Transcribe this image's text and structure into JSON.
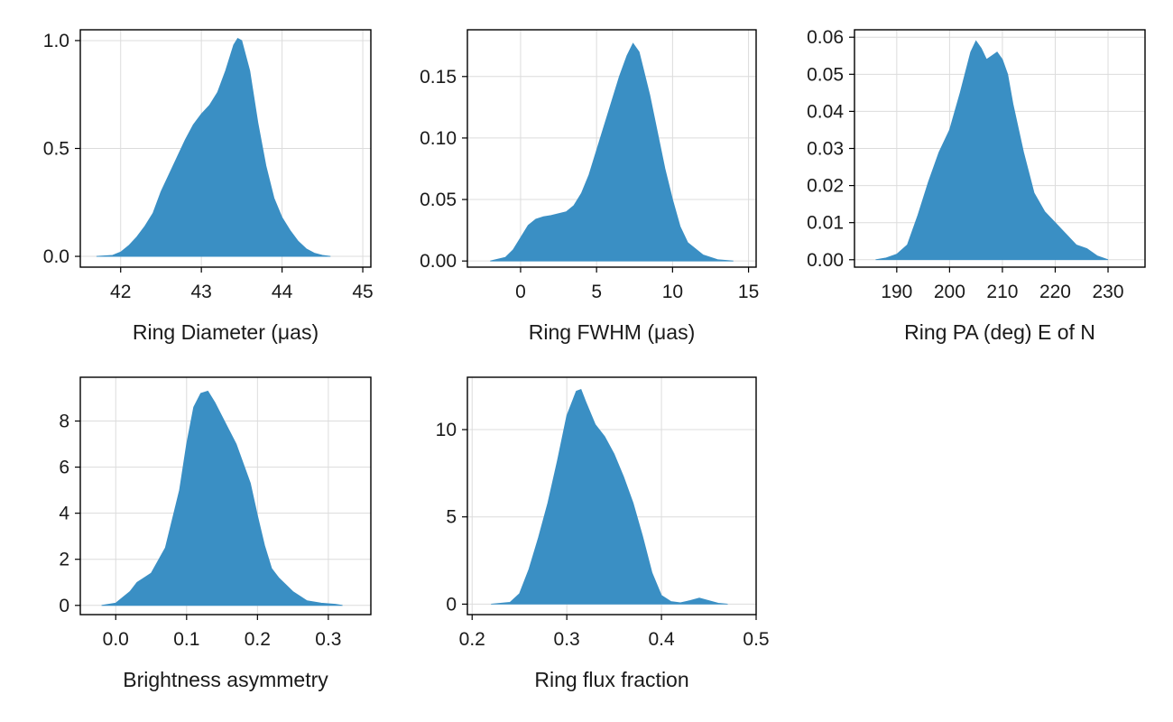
{
  "chart_data": [
    {
      "type": "area",
      "xlabel": "Ring Diameter (μas)",
      "ylabel": "",
      "xlim": [
        41.5,
        45.1
      ],
      "ylim": [
        -0.05,
        1.05
      ],
      "xticks": [
        "42",
        "43",
        "44",
        "45"
      ],
      "yticks": [
        "0.0",
        "0.5",
        "1.0"
      ],
      "grid": true,
      "color": "#3a8fc4",
      "series": [
        {
          "x": [
            41.7,
            41.9,
            42.0,
            42.1,
            42.2,
            42.3,
            42.4,
            42.5,
            42.6,
            42.7,
            42.8,
            42.9,
            43.0,
            43.1,
            43.2,
            43.3,
            43.4,
            43.45,
            43.5,
            43.6,
            43.7,
            43.8,
            43.9,
            44.0,
            44.1,
            44.2,
            44.3,
            44.4,
            44.5,
            44.6
          ],
          "y": [
            0.0,
            0.005,
            0.02,
            0.05,
            0.09,
            0.14,
            0.2,
            0.3,
            0.38,
            0.46,
            0.54,
            0.61,
            0.66,
            0.7,
            0.76,
            0.86,
            0.98,
            1.01,
            1.0,
            0.86,
            0.62,
            0.42,
            0.27,
            0.18,
            0.12,
            0.07,
            0.035,
            0.015,
            0.005,
            0.0
          ]
        }
      ]
    },
    {
      "type": "area",
      "xlabel": "Ring FWHM (μas)",
      "ylabel": "",
      "xlim": [
        -3.5,
        15.5
      ],
      "ylim": [
        -0.005,
        0.188
      ],
      "xticks": [
        "0",
        "5",
        "10",
        "15"
      ],
      "yticks": [
        "0.00",
        "0.05",
        "0.10",
        "0.15"
      ],
      "grid": true,
      "color": "#3a8fc4",
      "series": [
        {
          "x": [
            -2.0,
            -1.0,
            -0.5,
            0.0,
            0.5,
            1.0,
            1.5,
            2.0,
            3.0,
            3.5,
            4.0,
            4.5,
            5.0,
            5.5,
            6.0,
            6.5,
            7.0,
            7.4,
            7.8,
            8.5,
            9.0,
            9.5,
            10.0,
            10.5,
            11.0,
            12.0,
            13.0,
            14.0
          ],
          "y": [
            0.0,
            0.003,
            0.009,
            0.019,
            0.029,
            0.034,
            0.036,
            0.037,
            0.04,
            0.045,
            0.055,
            0.07,
            0.09,
            0.11,
            0.13,
            0.15,
            0.167,
            0.177,
            0.17,
            0.135,
            0.105,
            0.075,
            0.05,
            0.028,
            0.015,
            0.005,
            0.001,
            0.0
          ]
        }
      ]
    },
    {
      "type": "area",
      "xlabel": "Ring PA (deg) E of N",
      "ylabel": "",
      "xlim": [
        182,
        237
      ],
      "ylim": [
        -0.002,
        0.062
      ],
      "xticks": [
        "190",
        "200",
        "210",
        "220",
        "230"
      ],
      "yticks": [
        "0.00",
        "0.01",
        "0.02",
        "0.03",
        "0.04",
        "0.05",
        "0.06"
      ],
      "grid": true,
      "color": "#3a8fc4",
      "series": [
        {
          "x": [
            186,
            188,
            190,
            192,
            194,
            196,
            198,
            200,
            202,
            204,
            205,
            206,
            207,
            208,
            209,
            210,
            211,
            212,
            214,
            216,
            218,
            220,
            222,
            224,
            226,
            228,
            230
          ],
          "y": [
            0.0,
            0.0005,
            0.0015,
            0.004,
            0.012,
            0.021,
            0.029,
            0.035,
            0.045,
            0.056,
            0.059,
            0.057,
            0.054,
            0.055,
            0.056,
            0.054,
            0.05,
            0.042,
            0.029,
            0.018,
            0.013,
            0.01,
            0.007,
            0.004,
            0.003,
            0.001,
            0.0
          ]
        }
      ]
    },
    {
      "type": "area",
      "xlabel": "Brightness asymmetry",
      "ylabel": "",
      "xlim": [
        -0.05,
        0.36
      ],
      "ylim": [
        -0.4,
        9.9
      ],
      "xticks": [
        "0.0",
        "0.1",
        "0.2",
        "0.3"
      ],
      "yticks": [
        "0",
        "2",
        "4",
        "6",
        "8"
      ],
      "grid": true,
      "color": "#3a8fc4",
      "series": [
        {
          "x": [
            -0.02,
            0.0,
            0.02,
            0.03,
            0.04,
            0.05,
            0.07,
            0.09,
            0.1,
            0.11,
            0.12,
            0.13,
            0.14,
            0.15,
            0.17,
            0.19,
            0.2,
            0.21,
            0.22,
            0.23,
            0.25,
            0.27,
            0.29,
            0.31,
            0.32
          ],
          "y": [
            0.0,
            0.1,
            0.6,
            1.0,
            1.2,
            1.4,
            2.5,
            5.0,
            7.0,
            8.6,
            9.2,
            9.3,
            8.8,
            8.2,
            7.0,
            5.3,
            3.9,
            2.6,
            1.6,
            1.2,
            0.6,
            0.2,
            0.1,
            0.05,
            0.0
          ]
        }
      ]
    },
    {
      "type": "area",
      "xlabel": "Ring flux fraction",
      "ylabel": "",
      "xlim": [
        0.195,
        0.5
      ],
      "ylim": [
        -0.6,
        13.0
      ],
      "xticks": [
        "0.2",
        "0.3",
        "0.4",
        "0.5"
      ],
      "yticks": [
        "0",
        "5",
        "10"
      ],
      "grid": true,
      "color": "#3a8fc4",
      "series": [
        {
          "x": [
            0.22,
            0.24,
            0.25,
            0.26,
            0.27,
            0.28,
            0.29,
            0.3,
            0.31,
            0.315,
            0.32,
            0.33,
            0.34,
            0.35,
            0.36,
            0.37,
            0.38,
            0.39,
            0.4,
            0.41,
            0.42,
            0.43,
            0.44,
            0.45,
            0.46,
            0.47
          ],
          "y": [
            0.0,
            0.1,
            0.6,
            2.0,
            3.8,
            5.8,
            8.2,
            10.8,
            12.2,
            12.3,
            11.6,
            10.3,
            9.6,
            8.6,
            7.3,
            5.8,
            3.9,
            1.8,
            0.5,
            0.15,
            0.08,
            0.2,
            0.35,
            0.2,
            0.05,
            0.0
          ]
        }
      ]
    }
  ]
}
